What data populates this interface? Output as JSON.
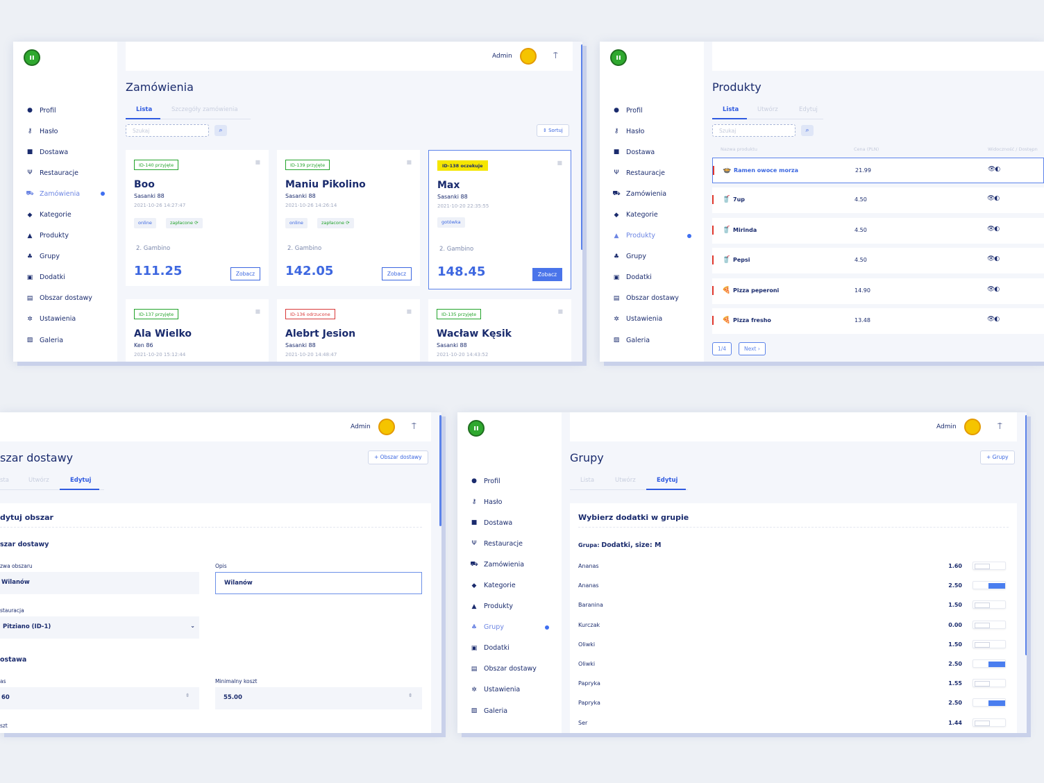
{
  "logo_text": "ıı",
  "sidebar": {
    "items": [
      {
        "icon": "user-icon",
        "glyph": "●",
        "label": "Profil"
      },
      {
        "icon": "key-icon",
        "glyph": "⚷",
        "label": "Hasło"
      },
      {
        "icon": "truck-icon",
        "glyph": "■",
        "label": "Dostawa"
      },
      {
        "icon": "cutlery-icon",
        "glyph": "Ψ",
        "label": "Restauracje"
      },
      {
        "icon": "cart-icon",
        "glyph": "⛟",
        "label": "Zamówienia"
      },
      {
        "icon": "tag-icon",
        "glyph": "◆",
        "label": "Kategorie"
      },
      {
        "icon": "bag-icon",
        "glyph": "▲",
        "label": "Produkty"
      },
      {
        "icon": "group-icon",
        "glyph": "♣",
        "label": "Grupy"
      },
      {
        "icon": "box-icon",
        "glyph": "▣",
        "label": "Dodatki"
      },
      {
        "icon": "map-icon",
        "glyph": "▤",
        "label": "Obszar dostawy"
      },
      {
        "icon": "gear-icon",
        "glyph": "✲",
        "label": "Ustawienia"
      },
      {
        "icon": "image-icon",
        "glyph": "▨",
        "label": "Galeria"
      }
    ]
  },
  "header": {
    "admin_label": "Admin",
    "logout_glyph": "⍑"
  },
  "orders": {
    "title": "Zamówienia",
    "tabs": [
      "Lista",
      "Szczegóły zamówienia"
    ],
    "search_placeholder": "Szukaj",
    "sort_label": "⇕  Sortuj",
    "view_label": "Zobacz",
    "cards": [
      {
        "badge": "ID-140 przyjęte",
        "status": "green",
        "name": "Boo",
        "address": "Sasanki 88",
        "date": "2021-10-26 14:27:47",
        "chips": [
          "online",
          "zapłacone ⟳"
        ],
        "restaurant": "2. Gambino",
        "price": "111.25"
      },
      {
        "badge": "ID-139 przyjęte",
        "status": "green",
        "name": "Maniu Pikolino",
        "address": "Sasanki 88",
        "date": "2021-10-26 14:26:14",
        "chips": [
          "online",
          "zapłacone ⟳"
        ],
        "restaurant": "2. Gambino",
        "price": "142.05"
      },
      {
        "badge": "ID-138 oczekuje",
        "status": "yellow",
        "name": "Max",
        "address": "Sasanki 88",
        "date": "2021-10-20 22:35:55",
        "chips": [
          "gotówka"
        ],
        "restaurant": "2. Gambino",
        "price": "148.45"
      },
      {
        "badge": "ID-137 przyjęte",
        "status": "green",
        "name": "Ala Wielko",
        "address": "Ken 86",
        "date": "2021-10-20 15:12:44"
      },
      {
        "badge": "ID-136 odrzucone",
        "status": "red",
        "name": "Alebrt Jesion",
        "address": "Sasanki 88",
        "date": "2021-10-20 14:48:47"
      },
      {
        "badge": "ID-135 przyjęte",
        "status": "green",
        "name": "Wacław Kęsik",
        "address": "Sasanki 88",
        "date": "2021-10-20 14:43:52"
      }
    ]
  },
  "products": {
    "title": "Produkty",
    "tabs": [
      "Lista",
      "Utwórz",
      "Edytuj"
    ],
    "search_placeholder": "Szukaj",
    "columns": [
      "Nazwa produktu",
      "Cena (PLN)",
      "Widoczność / Dostępn"
    ],
    "rows": [
      {
        "icon": "🍲",
        "name": "Ramen owoce morza",
        "price": "21.99",
        "vis": "👁◐"
      },
      {
        "icon": "🥤",
        "name": "7up",
        "price": "4.50",
        "vis": "👁◐"
      },
      {
        "icon": "🥤",
        "name": "Mirinda",
        "price": "4.50",
        "vis": "👁◐"
      },
      {
        "icon": "🥤",
        "name": "Pepsi",
        "price": "4.50",
        "vis": "👁◐"
      },
      {
        "icon": "🍕",
        "name": "Pizza peperoni",
        "price": "14.90",
        "vis": "👁◐"
      },
      {
        "icon": "🍕",
        "name": "Pizza fresho",
        "price": "13.48",
        "vis": "👁◐"
      }
    ],
    "pager": {
      "page": "1/4",
      "next": "Next ›"
    }
  },
  "area": {
    "title": "szar dostawy",
    "tabs": [
      "sta",
      "Utwórz",
      "Edytuj"
    ],
    "add_label": "+   Obszar dostawy",
    "panel_title": "dytuj obszar",
    "section1": "szar dostawy",
    "name_label": "zwa obszaru",
    "name_value": "Wilanów",
    "desc_label": "Opis",
    "desc_value": "Wilanów",
    "rest_label": "stauracja",
    "rest_value": "Pitziano (ID-1)",
    "section2": "ostawa",
    "time_label": "as",
    "time_value": "60",
    "min_label": "Minimalny koszt",
    "min_value": "55.00",
    "cost_label": "szt"
  },
  "groups": {
    "title": "Grupy",
    "tabs": [
      "Lista",
      "Utwórz",
      "Edytuj"
    ],
    "add_label": "+   Grupy",
    "panel_title": "Wybierz dodatki w grupie",
    "group_prefix": "Grupa:",
    "group_value": "Dodatki, size: M",
    "addons": [
      {
        "name": "Ananas",
        "price": "1.60",
        "on": false
      },
      {
        "name": "Ananas",
        "price": "2.50",
        "on": true
      },
      {
        "name": "Baranina",
        "price": "1.50",
        "on": false
      },
      {
        "name": "Kurczak",
        "price": "0.00",
        "on": false
      },
      {
        "name": "Oliwki",
        "price": "1.50",
        "on": false
      },
      {
        "name": "Oliwki",
        "price": "2.50",
        "on": true
      },
      {
        "name": "Papryka",
        "price": "1.55",
        "on": false
      },
      {
        "name": "Papryka",
        "price": "2.50",
        "on": true
      },
      {
        "name": "Ser",
        "price": "1.44",
        "on": false
      }
    ]
  },
  "colors": {
    "accent": "#3d67e0",
    "green": "#22a32a",
    "red": "#d83838",
    "yellow": "#f5e600"
  }
}
